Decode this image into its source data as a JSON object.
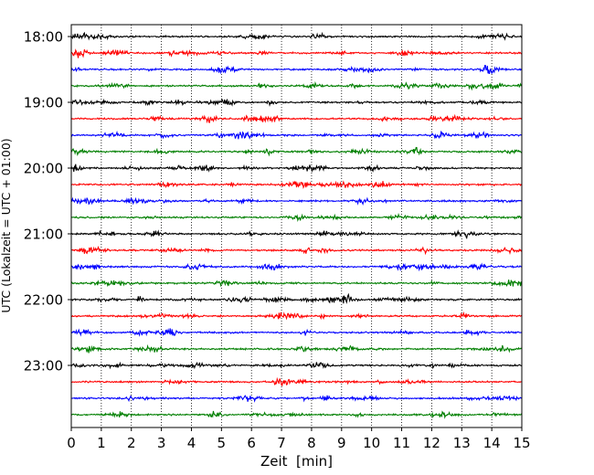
{
  "chart_data": {
    "type": "line",
    "title": "",
    "xlabel": "Zeit  [min]",
    "ylabel": "UTC (Lokalzeit = UTC + 01:00)",
    "xlim": [
      0,
      15
    ],
    "x_ticks": [
      0,
      1,
      2,
      3,
      4,
      5,
      6,
      7,
      8,
      9,
      10,
      11,
      12,
      13,
      14,
      15
    ],
    "x_grid": true,
    "y_tick_labels": [
      "18:00",
      "19:00",
      "20:00",
      "21:00",
      "22:00",
      "23:00"
    ],
    "trace_colors": [
      "#000000",
      "#ff0000",
      "#0000ff",
      "#007f00"
    ],
    "trace_start_times": [
      "18:00",
      "18:15",
      "18:30",
      "18:45",
      "19:00",
      "19:15",
      "19:30",
      "19:45",
      "20:00",
      "20:15",
      "20:30",
      "20:45",
      "21:00",
      "21:15",
      "21:30",
      "21:45",
      "22:00",
      "22:15",
      "22:30",
      "22:45",
      "23:00",
      "23:15",
      "23:30",
      "23:45"
    ],
    "trace_duration_min": 15
  }
}
